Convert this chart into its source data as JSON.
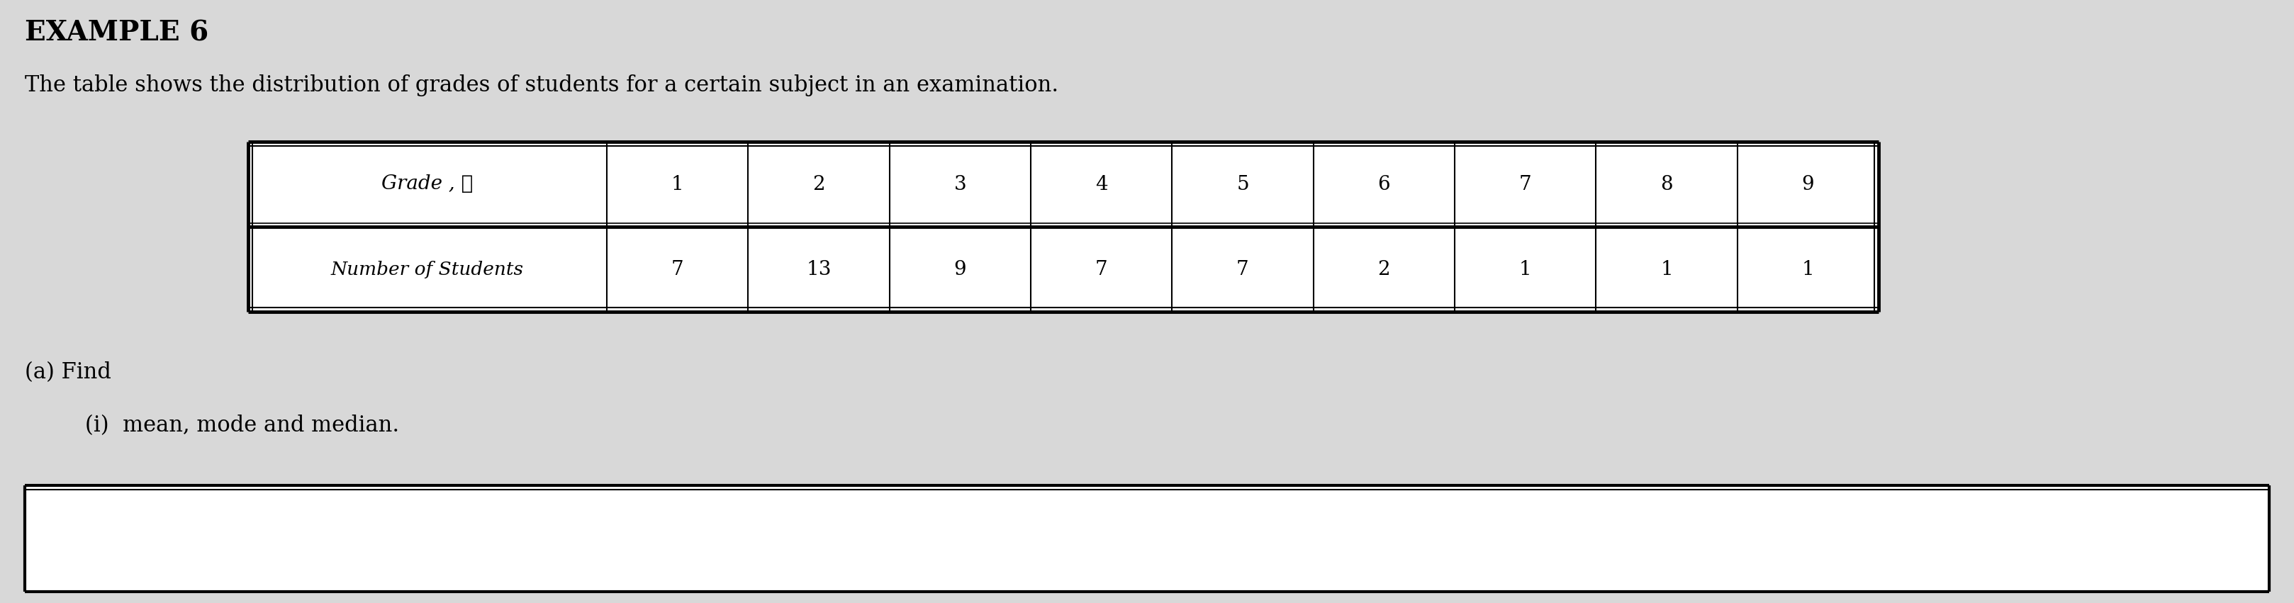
{
  "title": "EXAMPLE 6",
  "subtitle": "The table shows the distribution of grades of students for a certain subject in an examination.",
  "table_header": [
    "Grade , ⨉",
    "1",
    "2",
    "3",
    "4",
    "5",
    "6",
    "7",
    "8",
    "9"
  ],
  "table_row_label": "Number of Students",
  "table_row_values": [
    "7",
    "13",
    "9",
    "7",
    "7",
    "2",
    "1",
    "1",
    "1"
  ],
  "part_a": "(a) Find",
  "part_i": "(i)  mean, mode and median.",
  "bg_color": "#d8d8d8",
  "table_bg": "#ffffff",
  "text_color": "#000000",
  "title_fontsize": 28,
  "subtitle_fontsize": 22,
  "body_fontsize": 22,
  "table_fontsize": 20
}
